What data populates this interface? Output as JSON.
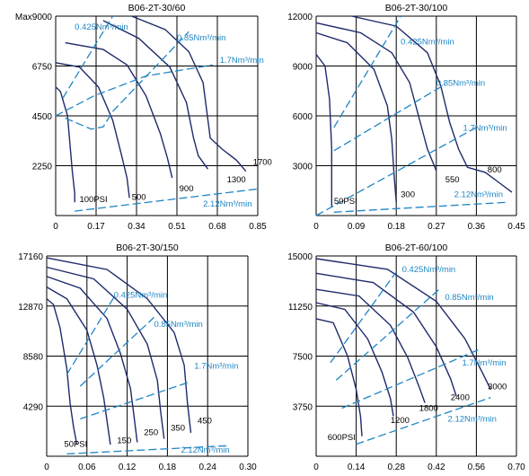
{
  "colors": {
    "curve": "#1f2a6b",
    "flow_line": "#1f86c4",
    "grid": "#000000",
    "text": "#000000",
    "flow_text": "#1f86c4"
  },
  "chart_data": [
    {
      "type": "line",
      "title": "B06-2T-30/60",
      "xlim": [
        0,
        0.85
      ],
      "ylim": [
        0,
        9000
      ],
      "x_ticks": [
        "0",
        "0.17",
        "0.34",
        "0.51",
        "0.68",
        "0.85"
      ],
      "y_ticks": [
        "Max9000",
        "6750",
        "4500",
        "2250"
      ],
      "series": [
        {
          "name": "100PSI",
          "x": [
            0.0,
            0.02,
            0.05,
            0.07,
            0.08,
            0.08
          ],
          "y": [
            5800,
            5600,
            4500,
            2000,
            1000,
            600
          ]
        },
        {
          "name": "500",
          "x": [
            0.0,
            0.1,
            0.18,
            0.24,
            0.28,
            0.3,
            0.31
          ],
          "y": [
            6900,
            6700,
            5800,
            4300,
            2600,
            1700,
            800
          ]
        },
        {
          "name": "900",
          "x": [
            0.04,
            0.2,
            0.3,
            0.38,
            0.44,
            0.47,
            0.49
          ],
          "y": [
            7800,
            7500,
            6800,
            5400,
            3700,
            2600,
            1700
          ]
        },
        {
          "name": "1300",
          "x": [
            0.2,
            0.35,
            0.48,
            0.55,
            0.58,
            0.6,
            0.64
          ],
          "y": [
            8800,
            8000,
            6700,
            5100,
            3500,
            2700,
            2100
          ]
        },
        {
          "name": "1700",
          "x": [
            0.32,
            0.46,
            0.56,
            0.62,
            0.65,
            0.7,
            0.76,
            0.8
          ],
          "y": [
            9000,
            8400,
            7400,
            6000,
            3500,
            3000,
            2500,
            2000
          ]
        }
      ],
      "flow_lines": [
        {
          "name": "0.425Nm³/min",
          "x": [
            0.03,
            0.24
          ],
          "y": [
            5300,
            9000
          ]
        },
        {
          "name": "0.85Nm³/min",
          "x": [
            0.04,
            0.15,
            0.2,
            0.24
          ],
          "y": [
            4400,
            3900,
            4000,
            4700
          ]
        },
        {
          "name": "0.85Nm³/min",
          "x": [
            0.24,
            0.56
          ],
          "y": [
            4700,
            8300
          ]
        },
        {
          "name": "1.7Nm³/min",
          "x": [
            0.0,
            0.16,
            0.38,
            0.66
          ],
          "y": [
            4500,
            5400,
            6300,
            6800
          ]
        },
        {
          "name": "2.12Nm³/min",
          "x": [
            0.08,
            0.85
          ],
          "y": [
            200,
            1200
          ]
        }
      ],
      "labels": [
        {
          "text": "0.425Nm³/min",
          "x": 0.08,
          "y": 8400,
          "color": "flow"
        },
        {
          "text": "0.85Nm³/min",
          "x": 0.51,
          "y": 7900,
          "color": "flow"
        },
        {
          "text": "1.7Nm³/min",
          "x": 0.69,
          "y": 6900,
          "color": "flow"
        },
        {
          "text": "2.12Nm³/min",
          "x": 0.62,
          "y": 400,
          "color": "flow"
        },
        {
          "text": "100PSI",
          "x": 0.1,
          "y": 600,
          "color": "curve"
        },
        {
          "text": "500",
          "x": 0.32,
          "y": 700,
          "color": "curve"
        },
        {
          "text": "900",
          "x": 0.52,
          "y": 1100,
          "color": "curve"
        },
        {
          "text": "1300",
          "x": 0.72,
          "y": 1500,
          "color": "curve"
        },
        {
          "text": "1700",
          "x": 0.83,
          "y": 2300,
          "color": "curve"
        }
      ]
    },
    {
      "type": "line",
      "title": "B06-2T-30/100",
      "xlim": [
        0,
        0.45
      ],
      "ylim": [
        0,
        12000
      ],
      "x_ticks": [
        "0",
        "0.09",
        "0.18",
        "0.27",
        "0.36",
        "0.45"
      ],
      "y_ticks": [
        "12000",
        "9000",
        "6000",
        "3000"
      ],
      "series": [
        {
          "name": "50PSI",
          "x": [
            0.0,
            0.02,
            0.03,
            0.035,
            0.035,
            0.035
          ],
          "y": [
            9700,
            9000,
            7000,
            4000,
            1500,
            500
          ]
        },
        {
          "name": "300",
          "x": [
            0.0,
            0.07,
            0.13,
            0.16,
            0.17,
            0.175,
            0.18
          ],
          "y": [
            11000,
            10400,
            8800,
            6600,
            4600,
            2500,
            800
          ]
        },
        {
          "name": "550",
          "x": [
            0.0,
            0.1,
            0.17,
            0.21,
            0.23,
            0.25,
            0.27
          ],
          "y": [
            11600,
            11000,
            9800,
            8000,
            6000,
            4000,
            2700
          ]
        },
        {
          "name": "800",
          "x": [
            0.08,
            0.18,
            0.25,
            0.28,
            0.3,
            0.32,
            0.34,
            0.38,
            0.41,
            0.44
          ],
          "y": [
            12000,
            11400,
            9800,
            7800,
            5600,
            4000,
            2900,
            2600,
            2000,
            1400
          ]
        }
      ],
      "flow_lines": [
        {
          "name": "0.425Nm³/min",
          "x": [
            0.04,
            0.19
          ],
          "y": [
            5300,
            12000
          ]
        },
        {
          "name": "0.85Nm³/min",
          "x": [
            0.04,
            0.29
          ],
          "y": [
            3900,
            7900
          ]
        },
        {
          "name": "1.7Nm³/min",
          "x": [
            0.0,
            0.36
          ],
          "y": [
            0,
            5300
          ]
        },
        {
          "name": "2.12Nm³/min",
          "x": [
            0.04,
            0.43
          ],
          "y": [
            200,
            800
          ]
        }
      ],
      "labels": [
        {
          "text": "0.425Nm³/min",
          "x": 0.19,
          "y": 10300,
          "color": "flow"
        },
        {
          "text": "0.85Nm³/min",
          "x": 0.27,
          "y": 7800,
          "color": "flow"
        },
        {
          "text": "1.7Nm³/min",
          "x": 0.33,
          "y": 5100,
          "color": "flow"
        },
        {
          "text": "2.12Nm³/min",
          "x": 0.31,
          "y": 1100,
          "color": "flow"
        },
        {
          "text": "50PSI",
          "x": 0.04,
          "y": 700,
          "color": "curve"
        },
        {
          "text": "300",
          "x": 0.19,
          "y": 1100,
          "color": "curve"
        },
        {
          "text": "550",
          "x": 0.29,
          "y": 2000,
          "color": "curve"
        },
        {
          "text": "800",
          "x": 0.385,
          "y": 2600,
          "color": "curve"
        }
      ]
    },
    {
      "type": "line",
      "title": "B06-2T-30/150",
      "xlim": [
        0,
        0.3
      ],
      "ylim": [
        0,
        17160
      ],
      "x_ticks": [
        "0",
        "0.06",
        "0.12",
        "0.18",
        "0.24",
        "0.30"
      ],
      "y_ticks": [
        "17160",
        "12870",
        "8580",
        "4290"
      ],
      "series": [
        {
          "name": "50PSI",
          "x": [
            0.0,
            0.01,
            0.02,
            0.03,
            0.035,
            0.04,
            0.045
          ],
          "y": [
            13500,
            13000,
            11000,
            7500,
            4500,
            2500,
            1000
          ]
        },
        {
          "name": "150",
          "x": [
            0.0,
            0.03,
            0.06,
            0.075,
            0.085,
            0.09,
            0.095
          ],
          "y": [
            14500,
            13500,
            10800,
            7800,
            5000,
            3000,
            1000
          ]
        },
        {
          "name": "250",
          "x": [
            0.0,
            0.05,
            0.09,
            0.11,
            0.125,
            0.13,
            0.135
          ],
          "y": [
            15400,
            14400,
            11800,
            8800,
            5800,
            3500,
            1200
          ]
        },
        {
          "name": "350",
          "x": [
            0.0,
            0.07,
            0.12,
            0.15,
            0.165,
            0.17,
            0.175
          ],
          "y": [
            16200,
            15200,
            12600,
            9600,
            6500,
            3800,
            1500
          ]
        },
        {
          "name": "450",
          "x": [
            0.0,
            0.09,
            0.15,
            0.19,
            0.205,
            0.21,
            0.215
          ],
          "y": [
            17000,
            16000,
            13500,
            10600,
            7800,
            4500,
            2000
          ]
        }
      ],
      "flow_lines": [
        {
          "name": "0.425Nm³/min",
          "x": [
            0.03,
            0.1
          ],
          "y": [
            7000,
            13600
          ]
        },
        {
          "name": "0.85Nm³/min",
          "x": [
            0.05,
            0.16
          ],
          "y": [
            6000,
            11900
          ]
        },
        {
          "name": "1.7Nm³/min",
          "x": [
            0.05,
            0.21
          ],
          "y": [
            3200,
            6300
          ]
        },
        {
          "name": "2.12Nm³/min",
          "x": [
            0.03,
            0.27
          ],
          "y": [
            200,
            900
          ]
        }
      ],
      "labels": [
        {
          "text": "0.425Nm³/min",
          "x": 0.1,
          "y": 13600,
          "color": "flow"
        },
        {
          "text": "0.85Nm³/min",
          "x": 0.16,
          "y": 11100,
          "color": "flow"
        },
        {
          "text": "1.7Nm³/min",
          "x": 0.22,
          "y": 7500,
          "color": "flow"
        },
        {
          "text": "2.12Nm³/min",
          "x": 0.2,
          "y": 300,
          "color": "flow"
        },
        {
          "text": "50PSI",
          "x": 0.026,
          "y": 800,
          "color": "curve"
        },
        {
          "text": "150",
          "x": 0.105,
          "y": 1100,
          "color": "curve"
        },
        {
          "text": "250",
          "x": 0.145,
          "y": 1800,
          "color": "curve"
        },
        {
          "text": "350",
          "x": 0.185,
          "y": 2200,
          "color": "curve"
        },
        {
          "text": "450",
          "x": 0.225,
          "y": 2800,
          "color": "curve"
        }
      ]
    },
    {
      "type": "line",
      "title": "B06-2T-60/100",
      "xlim": [
        0,
        0.7
      ],
      "ylim": [
        0,
        15000
      ],
      "x_ticks": [
        "0",
        "0.14",
        "0.28",
        "0.42",
        "0.56",
        "0.70"
      ],
      "y_ticks": [
        "15000",
        "11250",
        "7500",
        "3750"
      ],
      "series": [
        {
          "name": "600PSI",
          "x": [
            0.0,
            0.06,
            0.11,
            0.14,
            0.155,
            0.16
          ],
          "y": [
            10300,
            10000,
            7500,
            5000,
            3000,
            1500
          ]
        },
        {
          "name": "1200",
          "x": [
            0.0,
            0.1,
            0.18,
            0.23,
            0.26,
            0.27
          ],
          "y": [
            11500,
            11000,
            8800,
            6300,
            4300,
            3000
          ]
        },
        {
          "name": "1800",
          "x": [
            0.0,
            0.15,
            0.26,
            0.32,
            0.36,
            0.38
          ],
          "y": [
            12500,
            12000,
            9800,
            7400,
            5200,
            4000
          ]
        },
        {
          "name": "2400",
          "x": [
            0.0,
            0.2,
            0.34,
            0.42,
            0.47,
            0.49
          ],
          "y": [
            13700,
            13000,
            10800,
            8200,
            5800,
            4500
          ]
        },
        {
          "name": "3000",
          "x": [
            0.0,
            0.25,
            0.42,
            0.52,
            0.58,
            0.61
          ],
          "y": [
            14800,
            14000,
            11600,
            8800,
            6300,
            5000
          ]
        }
      ],
      "flow_lines": [
        {
          "name": "0.425Nm³/min",
          "x": [
            0.05,
            0.28
          ],
          "y": [
            7000,
            13800
          ]
        },
        {
          "name": "0.85Nm³/min",
          "x": [
            0.07,
            0.43
          ],
          "y": [
            5700,
            12500
          ]
        },
        {
          "name": "1.7Nm³/min",
          "x": [
            0.09,
            0.57
          ],
          "y": [
            3600,
            8000
          ]
        },
        {
          "name": "2.12Nm³/min",
          "x": [
            0.14,
            0.61
          ],
          "y": [
            900,
            4400
          ]
        }
      ],
      "labels": [
        {
          "text": "0.425Nm³/min",
          "x": 0.3,
          "y": 13800,
          "color": "flow"
        },
        {
          "text": "0.85Nm³/min",
          "x": 0.45,
          "y": 11700,
          "color": "flow"
        },
        {
          "text": "1.7Nm³/min",
          "x": 0.51,
          "y": 6800,
          "color": "flow"
        },
        {
          "text": "2.12Nm³/min",
          "x": 0.46,
          "y": 2600,
          "color": "flow"
        },
        {
          "text": "600PSI",
          "x": 0.04,
          "y": 1200,
          "color": "curve"
        },
        {
          "text": "1200",
          "x": 0.26,
          "y": 2500,
          "color": "curve"
        },
        {
          "text": "1800",
          "x": 0.36,
          "y": 3400,
          "color": "curve"
        },
        {
          "text": "2400",
          "x": 0.47,
          "y": 4200,
          "color": "curve"
        },
        {
          "text": "3000",
          "x": 0.6,
          "y": 5000,
          "color": "curve"
        }
      ]
    }
  ]
}
